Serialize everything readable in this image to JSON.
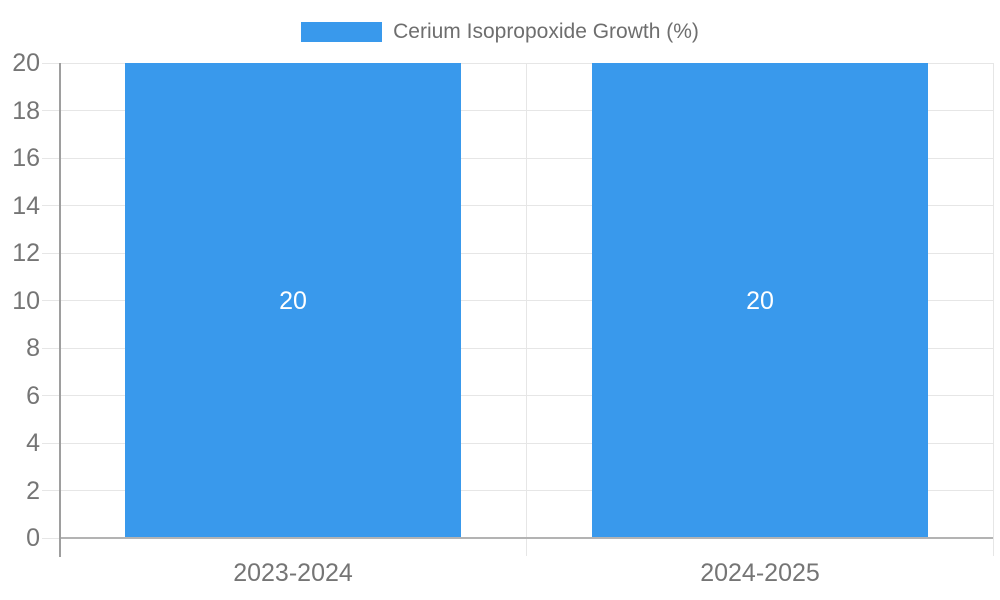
{
  "legend": {
    "label": "Cerium Isopropoxide Growth (%)"
  },
  "chart_data": {
    "type": "bar",
    "title": "",
    "xlabel": "",
    "ylabel": "",
    "categories": [
      "2023-2024",
      "2024-2025"
    ],
    "series": [
      {
        "name": "Cerium Isopropoxide Growth (%)",
        "values": [
          20,
          20
        ]
      }
    ],
    "bar_value_labels": [
      "20",
      "20"
    ],
    "ylim": [
      0,
      20
    ],
    "y_ticks": [
      0,
      2,
      4,
      6,
      8,
      10,
      12,
      14,
      16,
      18,
      20
    ],
    "grid": true,
    "legend_position": "top-center"
  },
  "style": {
    "bar_color": "#3999ec",
    "bar_value_label_color": "#ffffff",
    "axis_text_color": "#757575",
    "legend_text_color": "#6e6e6e",
    "gridline_color": "#e6e6e6",
    "axis_line_color": "#9e9e9e",
    "baseline_color": "#b3b3b3",
    "background_color": "#ffffff"
  }
}
